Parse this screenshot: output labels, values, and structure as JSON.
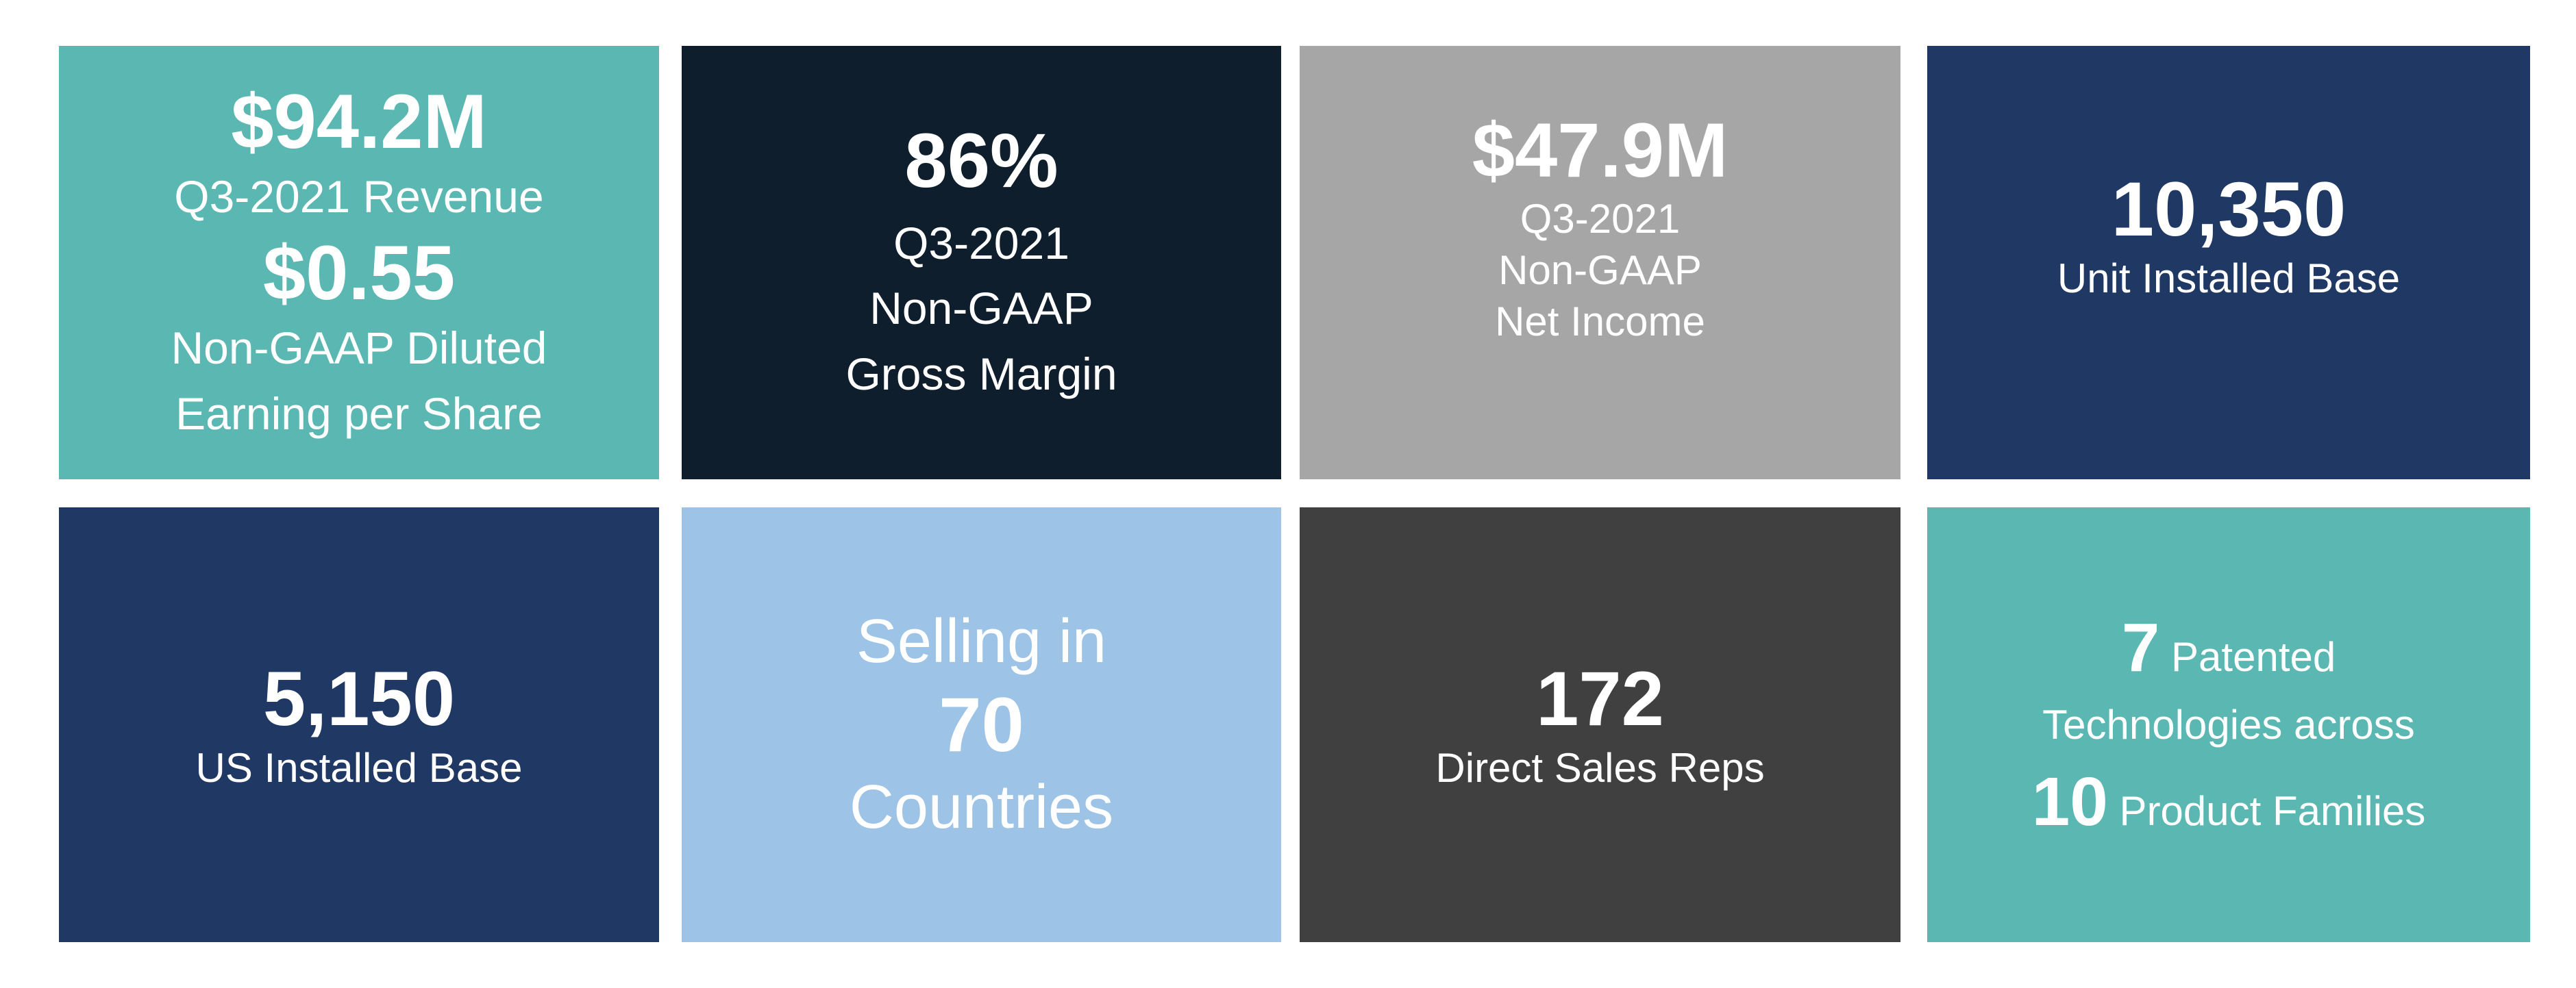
{
  "tiles": [
    {
      "lines": [
        "$94.2M",
        "Q3-2021 Revenue",
        "$0.55",
        "Non-GAAP Diluted",
        "Earning per Share"
      ]
    },
    {
      "lines": [
        "86%",
        "Q3-2021",
        "Non-GAAP",
        "Gross Margin"
      ]
    },
    {
      "lines": [
        "$47.9M",
        "Q3-2021",
        "Non-GAAP",
        "Net Income"
      ]
    },
    {
      "lines": [
        "10,350",
        "Unit Installed Base"
      ]
    },
    {
      "lines": [
        "5,150",
        "US Installed Base"
      ]
    },
    {
      "lines": [
        "Selling in",
        "70",
        "Countries"
      ]
    },
    {
      "lines": [
        "172",
        "Direct Sales Reps"
      ]
    },
    {
      "lines": [
        {
          "number": "7",
          "text": "Patented"
        },
        "Technologies across",
        {
          "number": "10",
          "text": "Product Families"
        }
      ]
    }
  ]
}
